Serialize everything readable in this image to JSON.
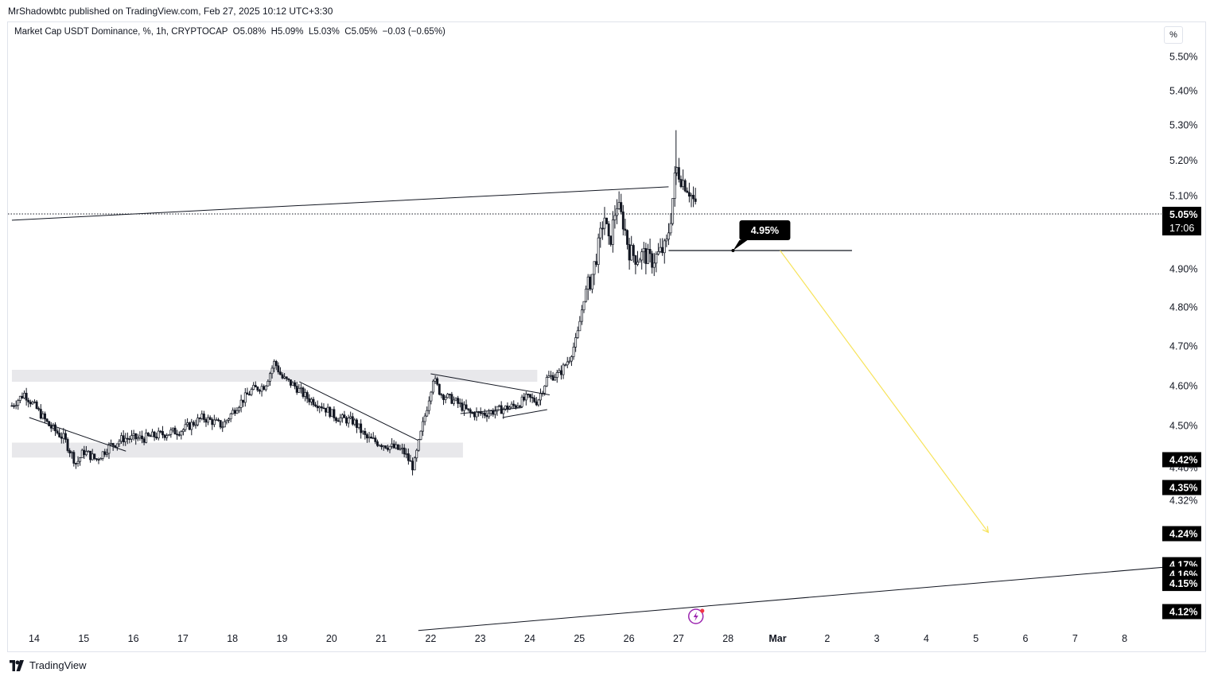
{
  "header": {
    "publisher": "MrShadowbtc published on TradingView.com, Feb 27, 2025 10:12 UTC+3:30"
  },
  "legend": {
    "symbol": "Market Cap USDT Dominance, %, 1h, CRYPTOCAP",
    "open": "O5.08%",
    "high": "H5.09%",
    "low": "L5.03%",
    "close": "C5.05%",
    "change": "−0.03 (−0.65%)"
  },
  "unit_button": "%",
  "footer": {
    "brand": "TradingView"
  },
  "colors": {
    "candle": "#131722",
    "zone": "#e8e8eb",
    "projection": "#f7e35a",
    "badge": "#000000",
    "grid_border": "#e0e3eb",
    "event_icon": "#9c27b0"
  },
  "chart_data": {
    "type": "candlestick",
    "title": "Market Cap USDT Dominance, %, 1h, CRYPTOCAP",
    "timeframe": "1h",
    "ylim": [
      4.1,
      5.55
    ],
    "y_ticks": [
      {
        "value": 5.5,
        "label": "5.50%"
      },
      {
        "value": 5.4,
        "label": "5.40%"
      },
      {
        "value": 5.3,
        "label": "5.30%"
      },
      {
        "value": 5.2,
        "label": "5.20%"
      },
      {
        "value": 5.1,
        "label": "5.10%"
      },
      {
        "value": 4.9,
        "label": "4.90%"
      },
      {
        "value": 4.8,
        "label": "4.80%"
      },
      {
        "value": 4.7,
        "label": "4.70%"
      },
      {
        "value": 4.6,
        "label": "4.60%"
      },
      {
        "value": 4.5,
        "label": "4.50%"
      },
      {
        "value": 4.4,
        "label": "4.40%"
      },
      {
        "value": 4.32,
        "label": "4.32%"
      }
    ],
    "x_ticks": [
      "14",
      "15",
      "16",
      "17",
      "18",
      "19",
      "20",
      "21",
      "22",
      "23",
      "24",
      "25",
      "26",
      "27",
      "28",
      "Mar",
      "2",
      "3",
      "4",
      "5",
      "6",
      "7",
      "8"
    ],
    "x_tick_day_index": [
      14,
      15,
      16,
      17,
      18,
      19,
      20,
      21,
      22,
      23,
      24,
      25,
      26,
      27,
      28,
      29,
      30,
      31,
      32,
      33,
      34,
      35,
      36
    ],
    "last_price": {
      "value": 5.05,
      "label": "5.05%",
      "countdown": "17:06"
    },
    "price_badges": [
      {
        "value": 4.42,
        "label": "4.42%"
      },
      {
        "value": 4.35,
        "label": "4.35%"
      },
      {
        "value": 4.24,
        "label": "4.24%"
      },
      {
        "value": 4.17,
        "label": "4.17%"
      },
      {
        "value": 4.16,
        "label": "4.16%"
      },
      {
        "value": 4.15,
        "label": "4.15%"
      },
      {
        "value": 4.12,
        "label": "4.12%"
      }
    ],
    "callout": {
      "label": "4.95%",
      "value": 4.95
    },
    "key_path": [
      [
        13.55,
        4.55
      ],
      [
        13.8,
        4.58
      ],
      [
        14.0,
        4.55
      ],
      [
        14.3,
        4.5
      ],
      [
        14.6,
        4.47
      ],
      [
        14.85,
        4.41
      ],
      [
        15.0,
        4.44
      ],
      [
        15.25,
        4.42
      ],
      [
        15.5,
        4.45
      ],
      [
        15.8,
        4.47
      ],
      [
        16.2,
        4.47
      ],
      [
        16.6,
        4.48
      ],
      [
        17.0,
        4.49
      ],
      [
        17.4,
        4.52
      ],
      [
        17.8,
        4.5
      ],
      [
        18.1,
        4.55
      ],
      [
        18.4,
        4.59
      ],
      [
        18.65,
        4.6
      ],
      [
        18.85,
        4.66
      ],
      [
        19.0,
        4.62
      ],
      [
        19.25,
        4.6
      ],
      [
        19.5,
        4.57
      ],
      [
        19.8,
        4.55
      ],
      [
        20.1,
        4.52
      ],
      [
        20.45,
        4.51
      ],
      [
        20.7,
        4.47
      ],
      [
        20.95,
        4.46
      ],
      [
        21.2,
        4.45
      ],
      [
        21.45,
        4.44
      ],
      [
        21.65,
        4.4
      ],
      [
        21.8,
        4.48
      ],
      [
        21.95,
        4.56
      ],
      [
        22.05,
        4.62
      ],
      [
        22.2,
        4.58
      ],
      [
        22.5,
        4.56
      ],
      [
        22.8,
        4.53
      ],
      [
        23.1,
        4.53
      ],
      [
        23.4,
        4.54
      ],
      [
        23.7,
        4.55
      ],
      [
        23.95,
        4.57
      ],
      [
        24.15,
        4.56
      ],
      [
        24.35,
        4.62
      ],
      [
        24.6,
        4.63
      ],
      [
        24.8,
        4.67
      ],
      [
        24.95,
        4.72
      ],
      [
        25.1,
        4.83
      ],
      [
        25.25,
        4.88
      ],
      [
        25.4,
        4.97
      ],
      [
        25.5,
        5.05
      ],
      [
        25.6,
        4.96
      ],
      [
        25.75,
        5.08
      ],
      [
        25.9,
        5.02
      ],
      [
        26.0,
        4.95
      ],
      [
        26.15,
        4.93
      ],
      [
        26.3,
        4.94
      ],
      [
        26.45,
        4.92
      ],
      [
        26.6,
        4.94
      ],
      [
        26.75,
        4.96
      ],
      [
        26.85,
        5.05
      ],
      [
        26.95,
        5.18
      ],
      [
        27.05,
        5.15
      ],
      [
        27.2,
        5.12
      ],
      [
        27.32,
        5.08
      ],
      [
        27.37,
        5.05
      ]
    ],
    "annotations": {
      "support_zones": [
        {
          "from_day": 13.55,
          "to_day": 24.15,
          "low": 4.61,
          "high": 4.64
        },
        {
          "from_day": 13.55,
          "to_day": 22.65,
          "low": 4.425,
          "high": 4.46
        }
      ],
      "trendlines": [
        {
          "from": [
            13.55,
            5.033
          ],
          "to": [
            26.8,
            5.125
          ]
        },
        {
          "from": [
            13.9,
            4.52
          ],
          "to": [
            15.85,
            4.44
          ]
        },
        {
          "from": [
            19.35,
            4.61
          ],
          "to": [
            21.75,
            4.465
          ]
        },
        {
          "from": [
            22.0,
            4.63
          ],
          "to": [
            24.4,
            4.577
          ]
        },
        {
          "from": [
            22.6,
            4.53
          ],
          "to": [
            23.85,
            4.545
          ]
        },
        {
          "from": [
            23.45,
            4.52
          ],
          "to": [
            24.35,
            4.54
          ]
        },
        {
          "from": [
            21.75,
            4.095
          ],
          "to": [
            37.4,
            4.17
          ]
        }
      ],
      "horizontal_level": {
        "value": 4.95,
        "from_day": 26.8,
        "to_day": 30.5
      },
      "projection_arrow": {
        "from": [
          29.05,
          4.95
        ],
        "to": [
          33.25,
          4.243
        ]
      }
    }
  }
}
